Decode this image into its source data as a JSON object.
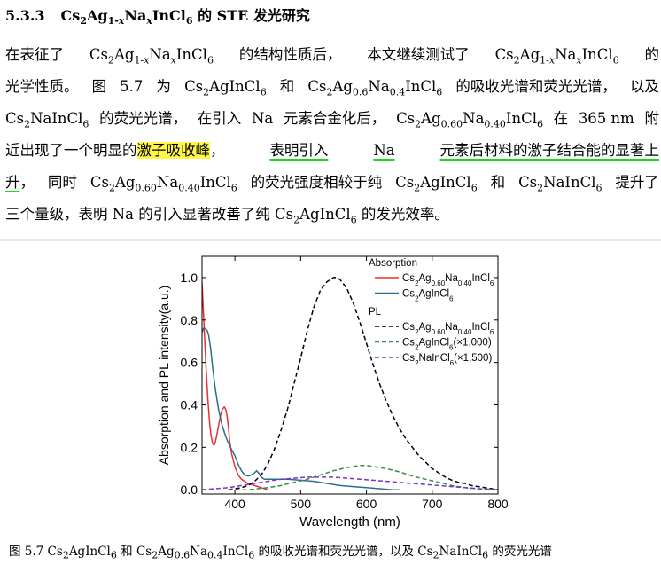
{
  "heading": {
    "number": "5.3.3",
    "title_html": "Cs<sub>2</sub>Ag<sub>1-<i>x</i></sub>Na<sub><i>x</i></sub>InCl<sub>6</sub> 的 STE 发光研究"
  },
  "paragraph": {
    "lines_html": [
      "<span>在表征了</span><span>Cs<sub>2</sub>Ag<sub>1-<i>x</i></sub>Na<sub><i>x</i></sub>InCl<sub>6</sub></span><span>的结构性质后，</span><span>本文继续测试了</span><span>Cs<sub>2</sub>Ag<sub>1-<i>x</i></sub>Na<sub><i>x</i></sub>InCl<sub>6</sub></span><span>的</span>",
      "<span>光学性质。</span><span>图</span><span>5.7</span><span>为</span><span>Cs<sub>2</sub>AgInCl<sub>6</sub></span><span>和</span><span>Cs<sub>2</sub>Ag<sub>0.6</sub>Na<sub>0.4</sub>InCl<sub>6</sub></span><span>的吸收光谱和荧光光谱，</span><span>以及</span>",
      "<span>Cs<sub>2</sub>NaInCl<sub>6</sub></span><span>的荧光光谱，</span><span>在引入</span><span>Na</span><span>元素合金化后，</span><span>Cs<sub>2</sub>Ag<sub>0.60</sub>Na<sub>0.40</sub>InCl<sub>6</sub></span><span>在</span><span>365 nm</span><span>附</span>",
      "<span>近出现了一个明显的<span class=\"hl\">激子吸收峰</span>，</span><span class=\"ul\">表明引入</span><span class=\"ul\">Na</span><span class=\"ul\">元素后材料的激子结合能的显著上</span>",
      "<span><span class=\"ul\">升</span>，</span><span>同时</span><span>Cs<sub>2</sub>Ag<sub>0.60</sub>Na<sub>0.40</sub>InCl<sub>6</sub></span><span>的荧光强度相较于纯</span><span>Cs<sub>2</sub>AgInCl<sub>6</sub></span><span>和</span><span>Cs<sub>2</sub>NaInCl<sub>6</sub></span><span>提升了</span>",
      "<span>三个量级，表明 Na 的引入显著改善了纯 Cs<sub>2</sub>AgInCl<sub>6</sub> 的发光效率。</span>"
    ]
  },
  "caption_html": "图 5.7 Cs<sub>2</sub>AgInCl<sub>6</sub> 和 Cs<sub>2</sub>Ag<sub>0.6</sub>Na<sub>0.4</sub>InCl<sub>6</sub> 的吸收光谱和荧光光谱，以及 Cs<sub>2</sub>NaInCl<sub>6</sub> 的荧光光谱",
  "chart_data": {
    "type": "line",
    "xlabel": "Wavelength (nm)",
    "ylabel": "Absorption and PL intensity(a.u.)",
    "xlim": [
      350,
      800
    ],
    "ylim": [
      -0.02,
      1.1
    ],
    "xticks": [
      400,
      500,
      600,
      700,
      800
    ],
    "yticks": [
      0.0,
      0.2,
      0.4,
      0.6,
      0.8,
      1.0
    ],
    "grid": false,
    "legend_placement": "top-right",
    "legend_groups": [
      {
        "title": "Absorption",
        "series_idx": [
          0,
          1
        ]
      },
      {
        "title": "PL",
        "series_idx": [
          2,
          3,
          4
        ]
      }
    ],
    "series": [
      {
        "name": "Cs2Ag0.60Na0.40InCl6",
        "name_html": "Cs<tspan baseline-shift=\"sub\" font-size=\"8\">2</tspan>Ag<tspan baseline-shift=\"sub\" font-size=\"8\">0.60</tspan>Na<tspan baseline-shift=\"sub\" font-size=\"8\">0.40</tspan>InCl<tspan baseline-shift=\"sub\" font-size=\"8\">6</tspan>",
        "group": "Absorption",
        "color": "#e8312f",
        "dash": "solid",
        "x": [
          350,
          353,
          356,
          359,
          362,
          364,
          366,
          368,
          370,
          372,
          375,
          378,
          381,
          384,
          386,
          388,
          390,
          392,
          395,
          400,
          405,
          410,
          415,
          420,
          425,
          430,
          440,
          450
        ],
        "y": [
          0.98,
          0.78,
          0.58,
          0.42,
          0.3,
          0.25,
          0.22,
          0.21,
          0.22,
          0.25,
          0.3,
          0.35,
          0.38,
          0.39,
          0.38,
          0.35,
          0.3,
          0.23,
          0.17,
          0.11,
          0.07,
          0.05,
          0.04,
          0.03,
          0.025,
          0.02,
          0.01,
          0.0
        ]
      },
      {
        "name": "Cs2AgInCl6",
        "name_html": "Cs<tspan baseline-shift=\"sub\" font-size=\"8\">2</tspan>AgInCl<tspan baseline-shift=\"sub\" font-size=\"8\">6</tspan>",
        "group": "Absorption",
        "color": "#2a6f8c",
        "dash": "solid",
        "x": [
          350,
          352,
          355,
          358,
          360,
          363,
          366,
          370,
          375,
          380,
          385,
          390,
          395,
          400,
          405,
          410,
          415,
          420,
          425,
          430,
          433,
          436,
          440,
          445,
          450,
          460,
          480,
          500,
          520,
          540,
          560,
          580,
          600,
          620,
          640,
          650
        ],
        "y": [
          0.74,
          0.76,
          0.76,
          0.75,
          0.73,
          0.67,
          0.58,
          0.48,
          0.38,
          0.31,
          0.26,
          0.22,
          0.19,
          0.16,
          0.12,
          0.09,
          0.07,
          0.065,
          0.07,
          0.08,
          0.09,
          0.08,
          0.06,
          0.05,
          0.05,
          0.05,
          0.05,
          0.045,
          0.04,
          0.03,
          0.02,
          0.015,
          0.01,
          0.005,
          0.0,
          0.0
        ]
      },
      {
        "name": "Cs2Ag0.60Na0.40InCl6",
        "name_html": "Cs<tspan baseline-shift=\"sub\" font-size=\"8\">2</tspan>Ag<tspan baseline-shift=\"sub\" font-size=\"8\">0.60</tspan>Na<tspan baseline-shift=\"sub\" font-size=\"8\">0.40</tspan>InCl<tspan baseline-shift=\"sub\" font-size=\"8\">6</tspan>",
        "group": "PL",
        "color": "#000000",
        "dash": "5,3",
        "x": [
          390,
          400,
          410,
          420,
          430,
          440,
          450,
          460,
          470,
          480,
          490,
          500,
          510,
          520,
          530,
          540,
          550,
          555,
          560,
          565,
          570,
          580,
          590,
          600,
          610,
          620,
          630,
          640,
          650,
          660,
          670,
          680,
          690,
          700,
          710,
          720,
          730,
          740,
          750,
          760,
          770,
          780,
          790,
          800
        ],
        "y": [
          0.0,
          0.005,
          0.01,
          0.02,
          0.04,
          0.07,
          0.12,
          0.19,
          0.28,
          0.38,
          0.5,
          0.62,
          0.75,
          0.86,
          0.94,
          0.98,
          1.0,
          1.0,
          0.99,
          0.97,
          0.95,
          0.88,
          0.79,
          0.69,
          0.59,
          0.5,
          0.42,
          0.35,
          0.29,
          0.24,
          0.2,
          0.16,
          0.13,
          0.1,
          0.08,
          0.06,
          0.045,
          0.035,
          0.03,
          0.02,
          0.015,
          0.01,
          0.005,
          0.0
        ]
      },
      {
        "name": "Cs2AgInCl6(×1,000)",
        "name_html": "Cs<tspan baseline-shift=\"sub\" font-size=\"8\">2</tspan>AgInCl<tspan baseline-shift=\"sub\" font-size=\"8\">6</tspan>(×1,000)",
        "group": "PL",
        "color": "#3a8a48",
        "dash": "5,3",
        "x": [
          390,
          420,
          450,
          470,
          490,
          510,
          530,
          550,
          570,
          590,
          600,
          610,
          630,
          650,
          670,
          690,
          710,
          730,
          750,
          770,
          800
        ],
        "y": [
          0.0,
          0.0,
          0.01,
          0.02,
          0.035,
          0.05,
          0.07,
          0.09,
          0.105,
          0.115,
          0.115,
          0.11,
          0.1,
          0.085,
          0.065,
          0.05,
          0.035,
          0.02,
          0.01,
          0.005,
          0.0
        ]
      },
      {
        "name": "Cs2NaInCl6(×1,500)",
        "name_html": "Cs<tspan baseline-shift=\"sub\" font-size=\"8\">2</tspan>NaInCl<tspan baseline-shift=\"sub\" font-size=\"8\">6</tspan>(×1,500)",
        "group": "PL",
        "color": "#7b32c8",
        "dash": "5,3",
        "x": [
          350,
          370,
          390,
          410,
          430,
          450,
          470,
          490,
          510,
          530,
          550,
          570,
          590,
          610,
          630,
          650,
          670,
          690,
          710,
          730,
          750,
          770,
          800
        ],
        "y": [
          0.0,
          0.005,
          0.01,
          0.02,
          0.03,
          0.04,
          0.05,
          0.055,
          0.06,
          0.06,
          0.06,
          0.055,
          0.05,
          0.045,
          0.04,
          0.035,
          0.03,
          0.025,
          0.02,
          0.015,
          0.01,
          0.005,
          0.0
        ]
      }
    ]
  }
}
